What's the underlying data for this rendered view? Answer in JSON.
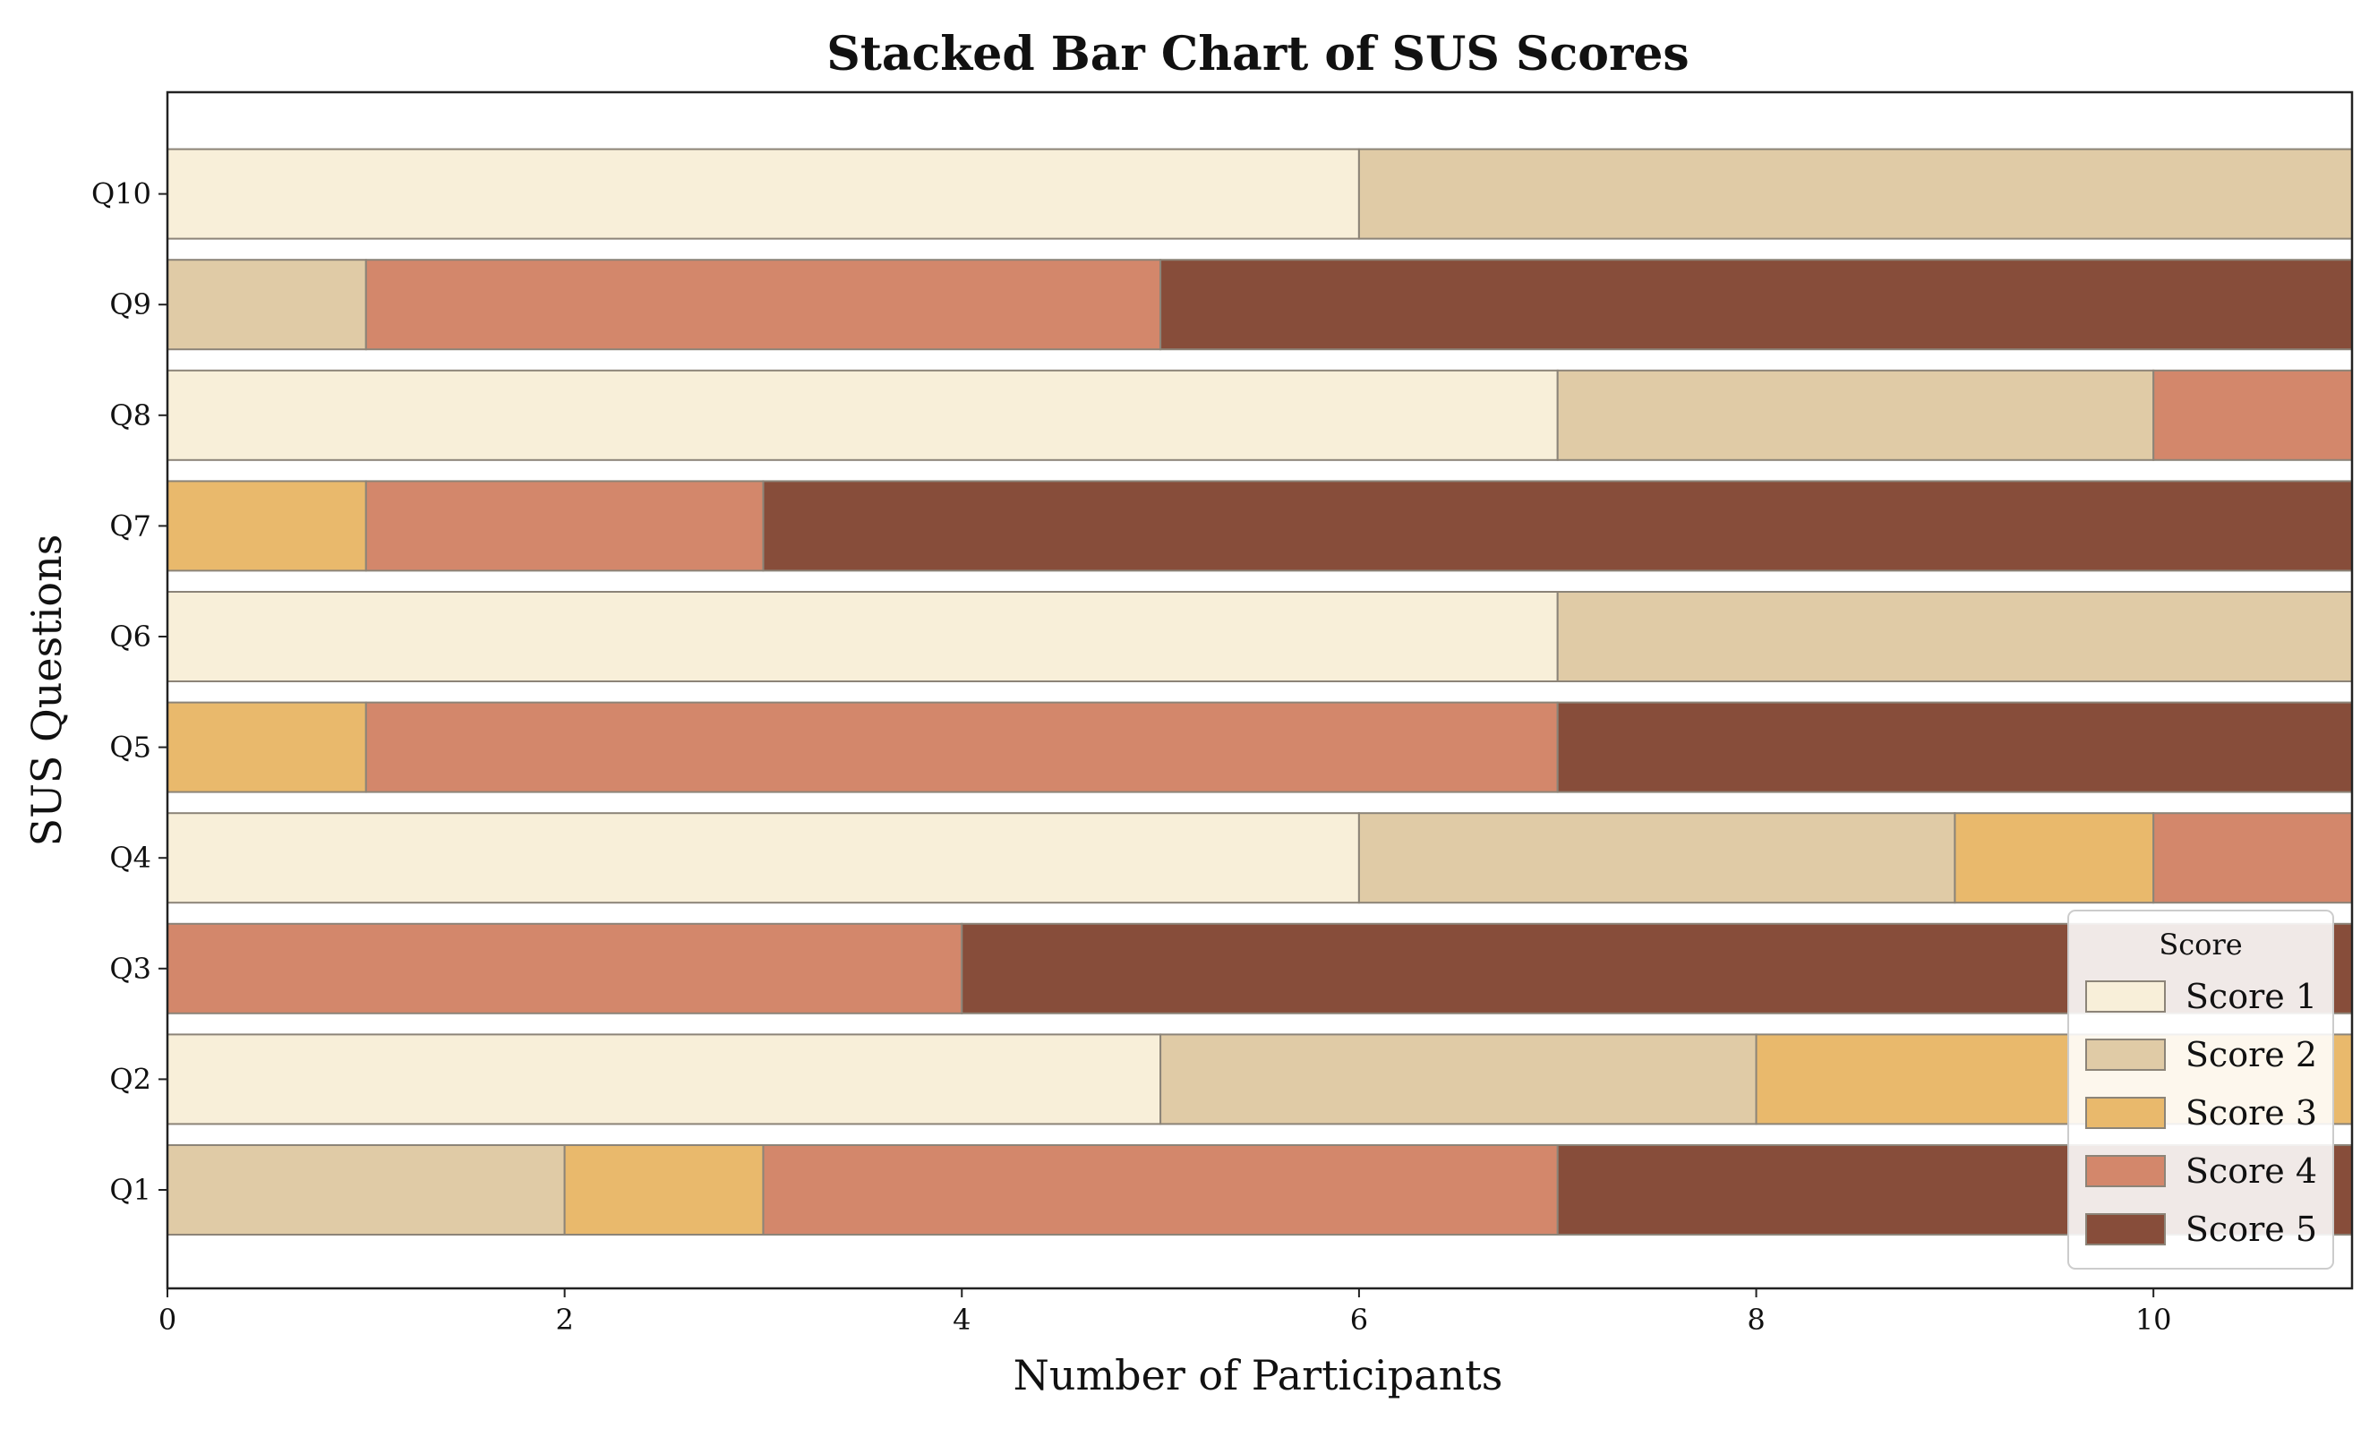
{
  "chart_data": {
    "type": "bar",
    "orientation": "horizontal",
    "stacked": true,
    "title": "Stacked Bar Chart of SUS Scores",
    "xlabel": "Number of Participants",
    "ylabel": "SUS Questions",
    "xlim": [
      0,
      11
    ],
    "xticks": [
      0,
      2,
      4,
      6,
      8,
      10
    ],
    "grid": false,
    "legend": {
      "title": "Score",
      "placement": "bottom-right"
    },
    "categories": [
      "Q1",
      "Q2",
      "Q3",
      "Q4",
      "Q5",
      "Q6",
      "Q7",
      "Q8",
      "Q9",
      "Q10"
    ],
    "series": [
      {
        "name": "Score 1",
        "color": "#f8efd9",
        "values": [
          0,
          5,
          0,
          6,
          0,
          7,
          0,
          7,
          0,
          6
        ]
      },
      {
        "name": "Score 2",
        "color": "#e0cba6",
        "values": [
          2,
          3,
          0,
          3,
          0,
          4,
          0,
          3,
          1,
          5
        ]
      },
      {
        "name": "Score 3",
        "color": "#e9b96c",
        "values": [
          1,
          3,
          0,
          1,
          1,
          0,
          1,
          0,
          0,
          0
        ]
      },
      {
        "name": "Score 4",
        "color": "#d3876b",
        "values": [
          4,
          0,
          4,
          1,
          6,
          0,
          2,
          1,
          4,
          0
        ]
      },
      {
        "name": "Score 5",
        "color": "#874d3a",
        "values": [
          4,
          0,
          7,
          0,
          4,
          0,
          8,
          0,
          6,
          0
        ]
      }
    ]
  }
}
